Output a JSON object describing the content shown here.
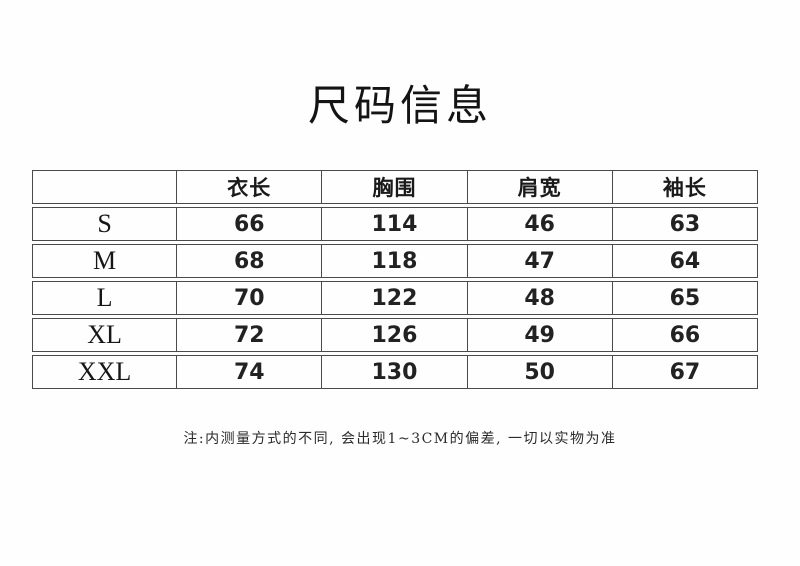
{
  "page": {
    "title": "尺码信息",
    "note": "注:内测量方式的不同, 会出现1~3CM的偏差, 一切以实物为准"
  },
  "size_table": {
    "columns": [
      "",
      "衣长",
      "胸围",
      "肩宽",
      "袖长"
    ],
    "rows": [
      {
        "size": "S",
        "values": [
          "66",
          "114",
          "46",
          "63"
        ]
      },
      {
        "size": "M",
        "values": [
          "68",
          "118",
          "47",
          "64"
        ]
      },
      {
        "size": "L",
        "values": [
          "70",
          "122",
          "48",
          "65"
        ]
      },
      {
        "size": "XL",
        "values": [
          "72",
          "126",
          "49",
          "66"
        ]
      },
      {
        "size": "XXL",
        "values": [
          "74",
          "130",
          "50",
          "67"
        ]
      }
    ]
  },
  "colors": {
    "background": "#fefefe",
    "border": "#4a4a4a",
    "text": "#1f1f1f"
  }
}
